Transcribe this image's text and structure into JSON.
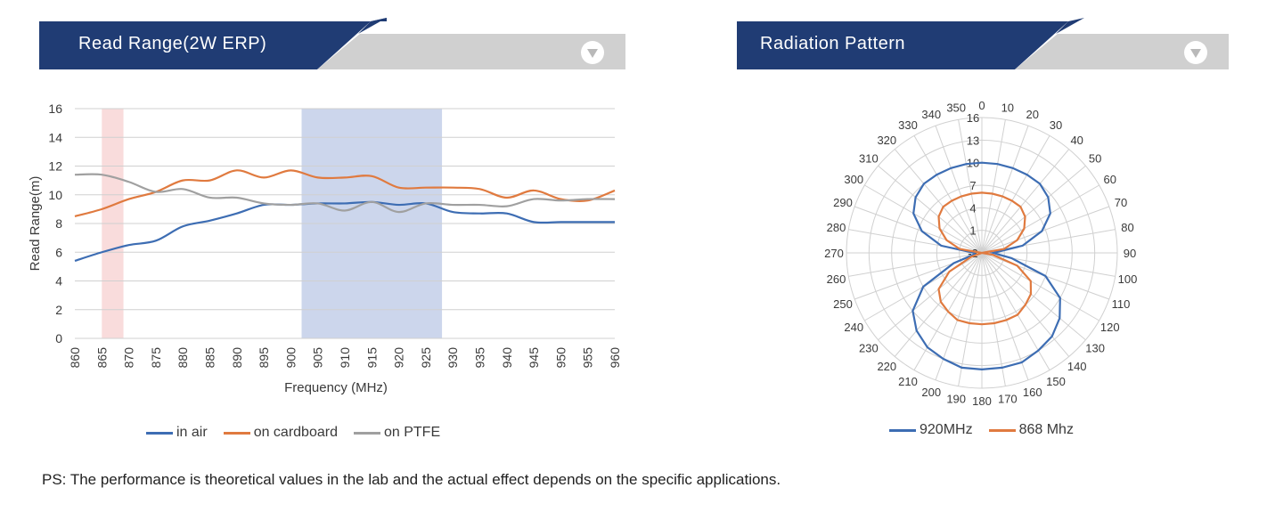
{
  "colors": {
    "header_navy": "#203c74",
    "header_gray": "#d0d0d0",
    "series_blue": "#3d6db3",
    "series_orange": "#e07a3f",
    "series_gray": "#a0a0a0",
    "band_pink": "#f9dcdc",
    "band_blue": "#ccd6ec",
    "grid": "#d0d0d0"
  },
  "panels": {
    "read_range": {
      "title": "Read Range(2W ERP)",
      "toggle_icon": "chevron-down-icon"
    },
    "radiation": {
      "title": "Radiation Pattern",
      "toggle_icon": "chevron-down-icon"
    }
  },
  "footer": {
    "note": "PS: The performance is theoretical values in the lab and the actual effect depends on the specific applications."
  },
  "chart_data": [
    {
      "type": "line",
      "title": "",
      "xlabel": "Frequency (MHz)",
      "ylabel": "Read Range(m)",
      "xlim": [
        860,
        960
      ],
      "ylim": [
        0,
        16
      ],
      "x_ticks": [
        "860",
        "865",
        "870",
        "875",
        "880",
        "885",
        "890",
        "895",
        "900",
        "905",
        "910",
        "915",
        "920",
        "925",
        "930",
        "935",
        "940",
        "945",
        "950",
        "955",
        "960"
      ],
      "y_ticks": [
        "0",
        "2",
        "4",
        "6",
        "8",
        "10",
        "12",
        "14",
        "16"
      ],
      "grid": true,
      "legend_position": "bottom",
      "highlight_bands": [
        {
          "from": 865,
          "to": 869,
          "color": "#f9dcdc"
        },
        {
          "from": 902,
          "to": 928,
          "color": "#ccd6ec"
        }
      ],
      "series": [
        {
          "name": "in air",
          "color": "#3d6db3",
          "x": [
            860,
            865,
            870,
            875,
            880,
            885,
            890,
            895,
            900,
            905,
            910,
            915,
            920,
            925,
            930,
            935,
            940,
            945,
            950,
            955,
            960
          ],
          "values": [
            5.4,
            6.0,
            6.5,
            6.8,
            7.8,
            8.2,
            8.7,
            9.3,
            9.3,
            9.4,
            9.4,
            9.5,
            9.3,
            9.4,
            8.8,
            8.7,
            8.7,
            8.1,
            8.1,
            8.1,
            8.1
          ]
        },
        {
          "name": "on cardboard",
          "color": "#e07a3f",
          "x": [
            860,
            865,
            870,
            875,
            880,
            885,
            890,
            895,
            900,
            905,
            910,
            915,
            920,
            925,
            930,
            935,
            940,
            945,
            950,
            955,
            960
          ],
          "values": [
            8.5,
            9.0,
            9.7,
            10.2,
            11.0,
            11.0,
            11.7,
            11.2,
            11.7,
            11.2,
            11.2,
            11.3,
            10.5,
            10.5,
            10.5,
            10.4,
            9.8,
            10.3,
            9.7,
            9.6,
            10.3
          ]
        },
        {
          "name": "on PTFE",
          "color": "#a0a0a0",
          "x": [
            860,
            865,
            870,
            875,
            880,
            885,
            890,
            895,
            900,
            905,
            910,
            915,
            920,
            925,
            930,
            935,
            940,
            945,
            950,
            955,
            960
          ],
          "values": [
            11.4,
            11.4,
            10.9,
            10.2,
            10.4,
            9.8,
            9.8,
            9.4,
            9.3,
            9.4,
            8.9,
            9.5,
            8.8,
            9.4,
            9.3,
            9.3,
            9.2,
            9.7,
            9.6,
            9.7,
            9.7
          ]
        }
      ]
    },
    {
      "type": "polar_line",
      "title": "",
      "angle_ticks": [
        "0",
        "10",
        "20",
        "30",
        "40",
        "50",
        "60",
        "70",
        "80",
        "90",
        "100",
        "110",
        "120",
        "130",
        "140",
        "150",
        "160",
        "170",
        "180",
        "190",
        "200",
        "210",
        "220",
        "230",
        "240",
        "250",
        "260",
        "270",
        "280",
        "290",
        "300",
        "310",
        "320",
        "330",
        "340",
        "350"
      ],
      "radial_ticks": [
        "-2",
        "1",
        "4",
        "7",
        "10",
        "13",
        "16"
      ],
      "rlim": [
        -2,
        16
      ],
      "grid": true,
      "legend_position": "bottom",
      "series": [
        {
          "name": "920MHz",
          "color": "#3d6db3",
          "angles": [
            0,
            10,
            20,
            30,
            40,
            50,
            60,
            70,
            80,
            90,
            100,
            110,
            120,
            130,
            140,
            150,
            160,
            170,
            180,
            190,
            200,
            210,
            220,
            230,
            240,
            250,
            260,
            270,
            280,
            290,
            300,
            310,
            320,
            330,
            340,
            350
          ],
          "values": [
            10,
            10,
            10,
            10,
            10,
            9.5,
            8.5,
            6.5,
            3.5,
            -0.5,
            2,
            7,
            10,
            11.5,
            12.5,
            13,
            13.5,
            13.5,
            13.5,
            13.5,
            13,
            12.5,
            11.5,
            10,
            7,
            2,
            -1,
            -1,
            3.5,
            6.5,
            8.5,
            9.5,
            10,
            10,
            10,
            10
          ]
        },
        {
          "name": "868 Mhz",
          "color": "#e07a3f",
          "angles": [
            0,
            10,
            20,
            30,
            40,
            50,
            60,
            70,
            80,
            90,
            100,
            110,
            120,
            130,
            140,
            150,
            160,
            170,
            180,
            190,
            200,
            210,
            220,
            230,
            240,
            250,
            260,
            270,
            280,
            290,
            300,
            310,
            320,
            330,
            340,
            350
          ],
          "values": [
            6,
            6,
            6,
            6,
            6,
            5.5,
            4.5,
            3,
            1,
            -2,
            -0.5,
            3,
            5.5,
            6.5,
            7,
            7.5,
            7.5,
            7.5,
            7.5,
            7.5,
            7.5,
            7,
            6.5,
            5.5,
            3,
            -0.5,
            -2,
            -2,
            1,
            3,
            4.5,
            5.5,
            6,
            6,
            6,
            6
          ]
        }
      ]
    }
  ]
}
